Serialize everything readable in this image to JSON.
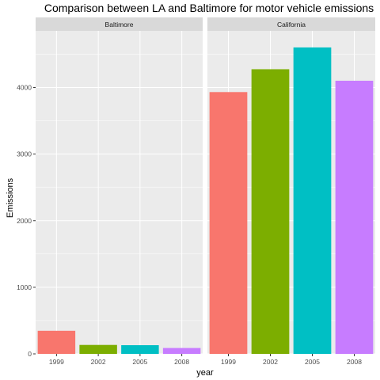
{
  "chart_data": {
    "type": "bar",
    "title": "Comparison between LA and Baltimore for motor vehicle emissions",
    "xlabel": "year",
    "ylabel": "Emissions",
    "categories": [
      "1999",
      "2002",
      "2005",
      "2008"
    ],
    "ylim": [
      0,
      4850
    ],
    "yticks": [
      0,
      1000,
      2000,
      3000,
      4000
    ],
    "grid": true,
    "legend": "none",
    "colors": [
      "#F8766D",
      "#7CAE00",
      "#00BFC4",
      "#C77CFF"
    ],
    "panel_bg": "#EBEBEB",
    "strip_bg": "#D9D9D9",
    "facets": [
      {
        "name": "Baltimore",
        "values": [
          346.8,
          134.3,
          130.4,
          88.3
        ]
      },
      {
        "name": "California",
        "values": [
          3931.1,
          4274.0,
          4601.4,
          4101.3
        ]
      }
    ]
  }
}
